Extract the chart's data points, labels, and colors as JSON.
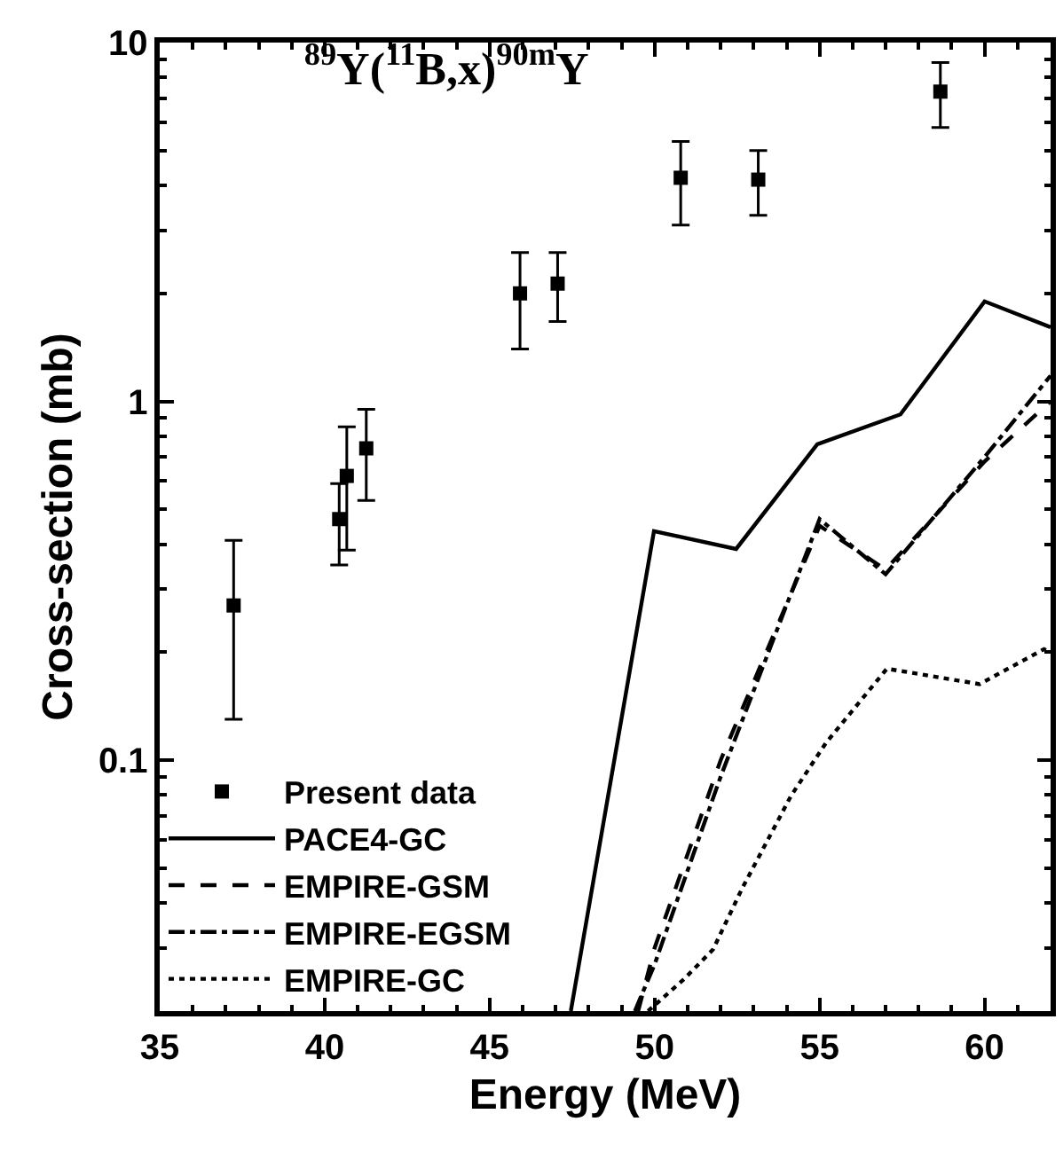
{
  "chart_data": {
    "type": "line",
    "title": "$^{89}$Y($^{11}$B,x)$^{90m}$Y",
    "xlabel": "Energy (MeV)",
    "ylabel": "Cross-section (mb)",
    "xlim": [
      35,
      62
    ],
    "xticks": [
      35,
      40,
      45,
      50,
      55,
      60
    ],
    "ylim": [
      0.02,
      10
    ],
    "yticks": [
      0.1,
      1,
      10
    ],
    "log": "y",
    "grid": false,
    "legend": "bottom left",
    "series": [
      {
        "name": "Present data",
        "type": "scatter",
        "marker": "square",
        "color": "#000000",
        "x": [
          37.24,
          40.44,
          40.67,
          41.26,
          45.92,
          47.06,
          50.79,
          53.14,
          58.66
        ],
        "values": [
          0.27,
          0.47,
          0.62,
          0.74,
          2.0,
          2.13,
          4.2,
          4.15,
          7.3
        ],
        "errors": [
          [
            0.13,
            0.41
          ],
          [
            0.35,
            0.59
          ],
          [
            0.385,
            0.85
          ],
          [
            0.53,
            0.95
          ],
          [
            1.4,
            2.6
          ],
          [
            1.67,
            2.6
          ],
          [
            3.1,
            5.3
          ],
          [
            3.3,
            5.0
          ],
          [
            5.8,
            8.8
          ]
        ]
      },
      {
        "name": "PACE4-GC",
        "line_style": "solid",
        "color": "#000000",
        "x": [
          47.46,
          49.98,
          52.47,
          54.93,
          57.45,
          60.0,
          62.0
        ],
        "values": [
          0.02,
          0.435,
          0.388,
          0.76,
          0.92,
          1.9,
          1.61
        ]
      },
      {
        "name": "EMPIRE-GSM",
        "line_style": "dashed",
        "color": "#000000",
        "x": [
          49.5,
          50.0,
          52.0,
          55.0,
          57.0,
          60.0,
          62.0
        ],
        "values": [
          0.02,
          0.03,
          0.1,
          0.45,
          0.34,
          0.68,
          1.0
        ]
      },
      {
        "name": "EMPIRE-EGSM",
        "line_style": "dashdot",
        "color": "#000000",
        "x": [
          49.4,
          50.0,
          52.0,
          55.0,
          57.0,
          60.0,
          62.0
        ],
        "values": [
          0.02,
          0.027,
          0.09,
          0.47,
          0.33,
          0.7,
          1.18
        ]
      },
      {
        "name": "EMPIRE-GC",
        "line_style": "dotted",
        "color": "#000000",
        "x": [
          49.8,
          50.9,
          51.77,
          52.65,
          54.14,
          55.2,
          57.04,
          59.85,
          61.8,
          62.0
        ],
        "values": [
          0.02,
          0.0246,
          0.0297,
          0.0439,
          0.0798,
          0.112,
          0.18,
          0.163,
          0.204,
          0.2
        ]
      }
    ]
  }
}
